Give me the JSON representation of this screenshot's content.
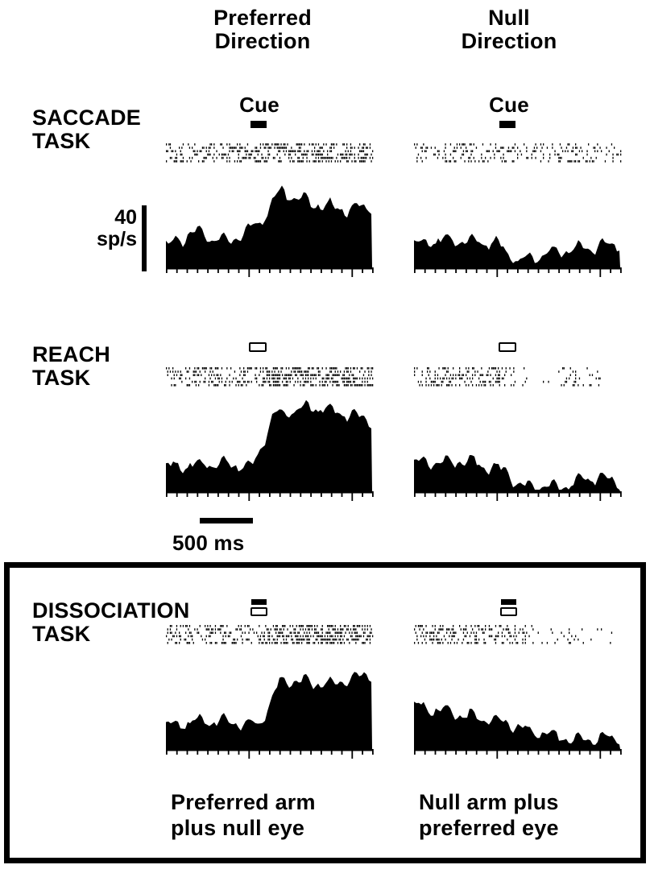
{
  "column_headers": {
    "preferred": "Preferred\nDirection",
    "null": "Null\nDirection"
  },
  "tasks": {
    "saccade": "SACCADE\nTASK",
    "reach": "REACH\nTASK",
    "dissociation": "DISSOCIATION\nTASK"
  },
  "cue_label": "Cue",
  "scale_bar": {
    "rate_value": "40",
    "rate_unit": "sp/s",
    "time": "500 ms"
  },
  "dissociation_captions": {
    "preferred": "Preferred arm\nplus null eye",
    "null": "Null arm plus\npreferred eye"
  },
  "cue_symbols": {
    "saccade": "filled-bar (eye target)",
    "reach": "open-box (arm target)",
    "dissociation": "filled-bar over open-box"
  },
  "colors": {
    "ink": "#000000",
    "paper": "#ffffff"
  }
}
